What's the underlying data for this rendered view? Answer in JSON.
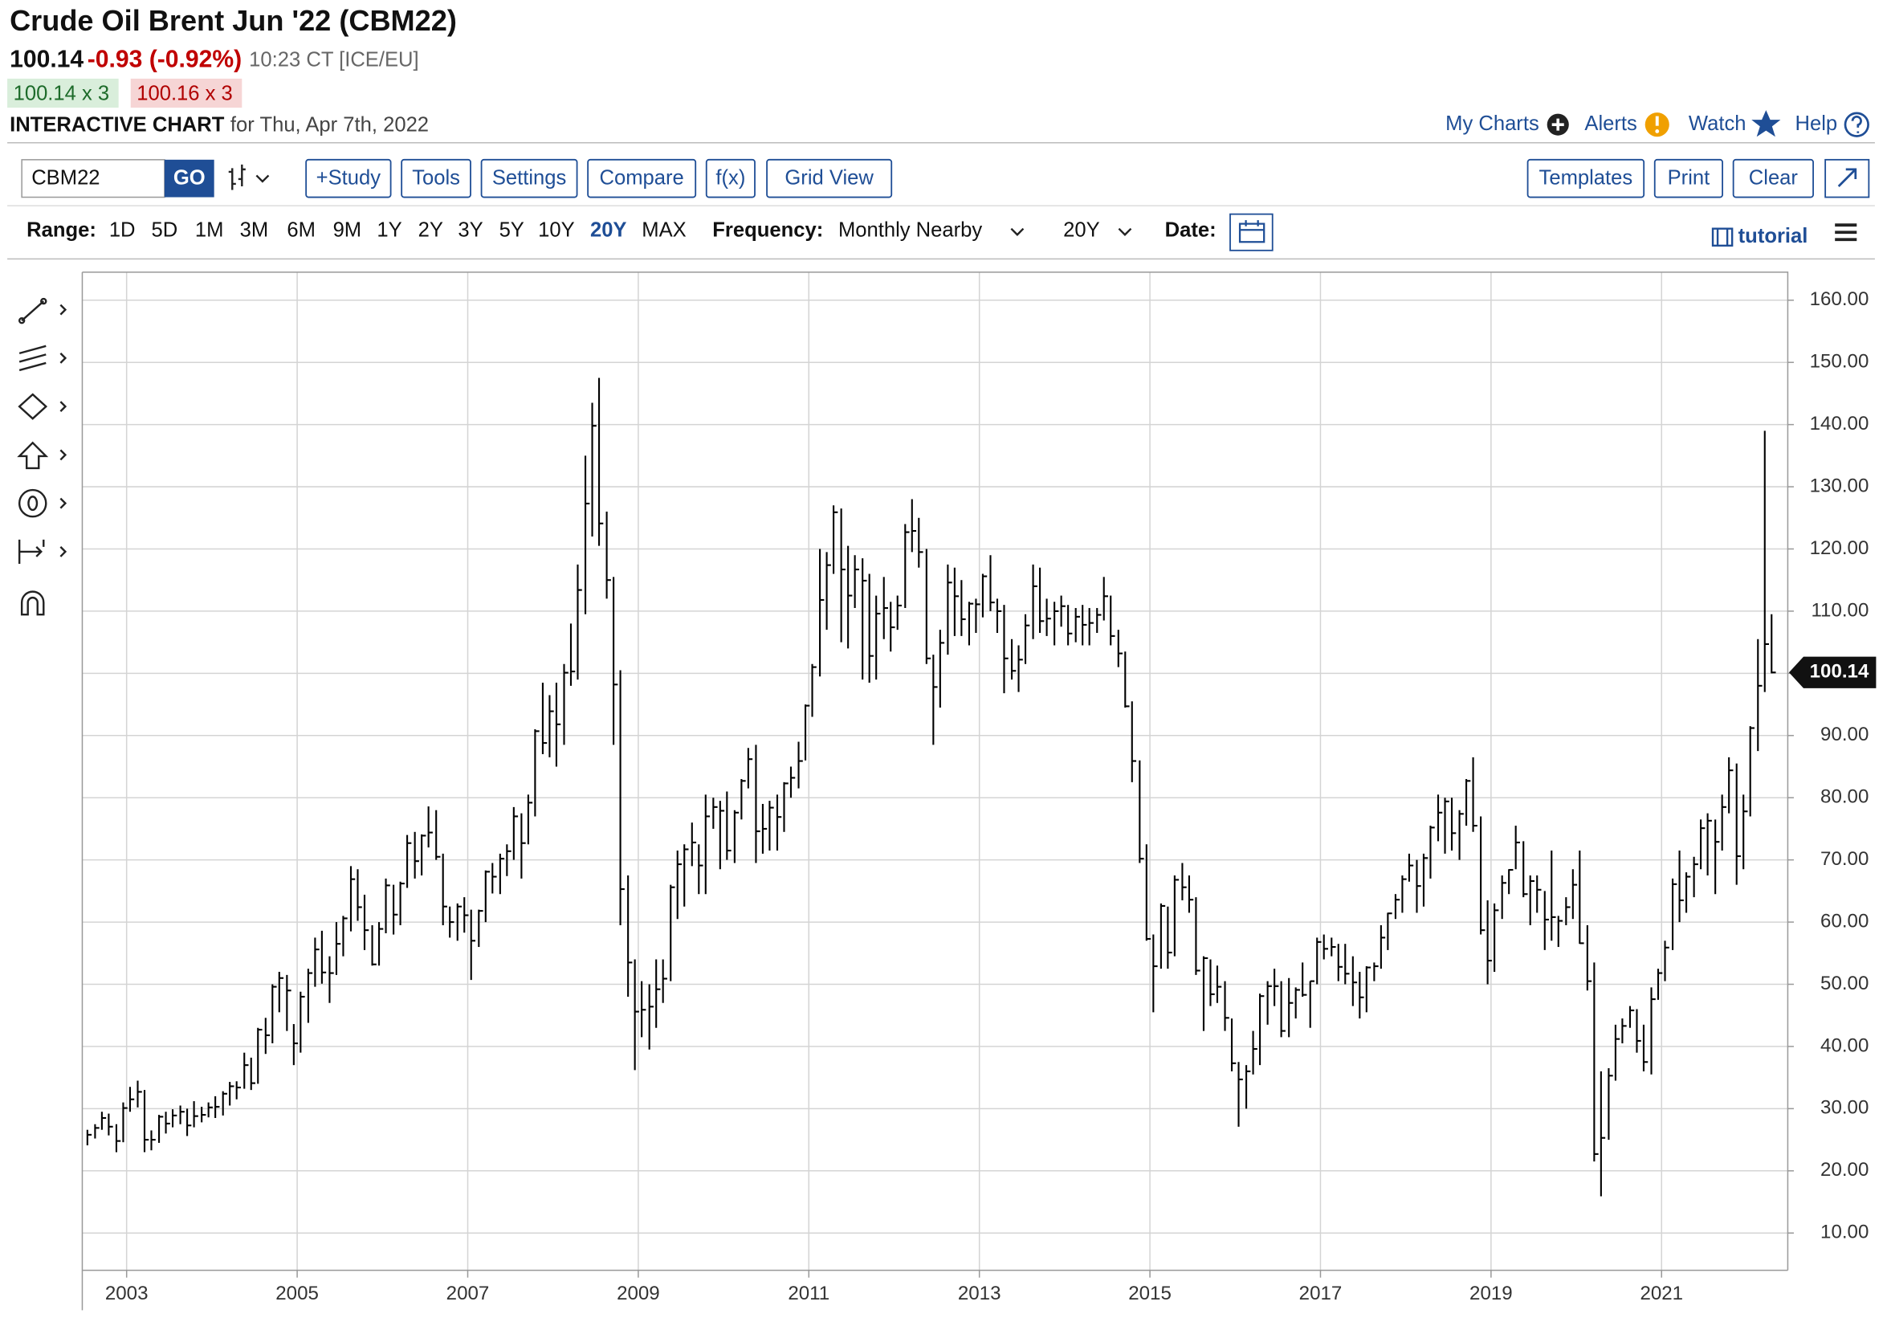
{
  "header": {
    "title": "Crude Oil Brent Jun '22 (CBM22)",
    "last": "100.14",
    "change": "-0.93 (-0.92%)",
    "time": "10:23 CT [ICE/EU]",
    "bid": "100.14 x 3",
    "ask": "100.16 x 3",
    "chart_label": "INTERACTIVE CHART",
    "date_text": "for Thu, Apr 7th, 2022",
    "links": [
      "My Charts",
      "Alerts",
      "Watch",
      "Help"
    ]
  },
  "toolbar": {
    "symbol": "CBM22",
    "go": "GO",
    "buttons": [
      "+Study",
      "Tools",
      "Settings",
      "Compare",
      "f(x)",
      "Grid View"
    ],
    "right_buttons": [
      "Templates",
      "Print",
      "Clear"
    ],
    "range_label": "Range:",
    "ranges": [
      "1D",
      "5D",
      "1M",
      "3M",
      "6M",
      "9M",
      "1Y",
      "2Y",
      "3Y",
      "5Y",
      "10Y",
      "20Y",
      "MAX"
    ],
    "active_range": "20Y",
    "frequency_label": "Frequency:",
    "frequency": "Monthly Nearby",
    "period": "20Y",
    "date_label": "Date:",
    "tutorial": "tutorial"
  },
  "chart_data": {
    "type": "ohlc",
    "color": "#000000",
    "grid": true,
    "x": [
      2002.54,
      2002.63,
      2002.71,
      2002.79,
      2002.88,
      2002.96,
      2003.04,
      2003.13,
      2003.21,
      2003.29,
      2003.38,
      2003.46,
      2003.54,
      2003.63,
      2003.71,
      2003.79,
      2003.88,
      2003.96,
      2004.04,
      2004.13,
      2004.21,
      2004.29,
      2004.38,
      2004.46,
      2004.54,
      2004.63,
      2004.71,
      2004.79,
      2004.88,
      2004.96,
      2005.04,
      2005.13,
      2005.21,
      2005.29,
      2005.38,
      2005.46,
      2005.54,
      2005.63,
      2005.71,
      2005.79,
      2005.88,
      2005.96,
      2006.04,
      2006.13,
      2006.21,
      2006.29,
      2006.38,
      2006.46,
      2006.54,
      2006.63,
      2006.71,
      2006.79,
      2006.88,
      2006.96,
      2007.04,
      2007.13,
      2007.21,
      2007.29,
      2007.38,
      2007.46,
      2007.54,
      2007.63,
      2007.71,
      2007.79,
      2007.88,
      2007.96,
      2008.04,
      2008.13,
      2008.21,
      2008.29,
      2008.38,
      2008.46,
      2008.54,
      2008.63,
      2008.71,
      2008.79,
      2008.88,
      2008.96,
      2009.04,
      2009.13,
      2009.21,
      2009.29,
      2009.38,
      2009.46,
      2009.54,
      2009.63,
      2009.71,
      2009.79,
      2009.88,
      2009.96,
      2010.04,
      2010.13,
      2010.21,
      2010.29,
      2010.38,
      2010.46,
      2010.54,
      2010.63,
      2010.71,
      2010.79,
      2010.88,
      2010.96,
      2011.04,
      2011.13,
      2011.21,
      2011.29,
      2011.38,
      2011.46,
      2011.54,
      2011.63,
      2011.71,
      2011.79,
      2011.88,
      2011.96,
      2012.04,
      2012.13,
      2012.21,
      2012.29,
      2012.38,
      2012.46,
      2012.54,
      2012.63,
      2012.71,
      2012.79,
      2012.88,
      2012.96,
      2013.04,
      2013.13,
      2013.21,
      2013.29,
      2013.38,
      2013.46,
      2013.54,
      2013.63,
      2013.71,
      2013.79,
      2013.88,
      2013.96,
      2014.04,
      2014.13,
      2014.21,
      2014.29,
      2014.38,
      2014.46,
      2014.54,
      2014.63,
      2014.71,
      2014.79,
      2014.88,
      2014.96,
      2015.04,
      2015.13,
      2015.21,
      2015.29,
      2015.38,
      2015.46,
      2015.54,
      2015.63,
      2015.71,
      2015.79,
      2015.88,
      2015.96,
      2016.04,
      2016.13,
      2016.21,
      2016.29,
      2016.38,
      2016.46,
      2016.54,
      2016.63,
      2016.71,
      2016.79,
      2016.88,
      2016.96,
      2017.04,
      2017.13,
      2017.21,
      2017.29,
      2017.38,
      2017.46,
      2017.54,
      2017.63,
      2017.71,
      2017.79,
      2017.88,
      2017.96,
      2018.04,
      2018.13,
      2018.21,
      2018.29,
      2018.38,
      2018.46,
      2018.54,
      2018.63,
      2018.71,
      2018.79,
      2018.88,
      2018.96,
      2019.04,
      2019.13,
      2019.21,
      2019.29,
      2019.38,
      2019.46,
      2019.54,
      2019.63,
      2019.71,
      2019.79,
      2019.88,
      2019.96,
      2020.04,
      2020.13,
      2020.21,
      2020.29,
      2020.38,
      2020.46,
      2020.54,
      2020.63,
      2020.71,
      2020.79,
      2020.88,
      2020.96,
      2021.04,
      2021.13,
      2021.21,
      2021.29,
      2021.38,
      2021.46,
      2021.54,
      2021.63,
      2021.71,
      2021.79,
      2021.88,
      2021.96,
      2022.04,
      2022.13,
      2022.21,
      2022.29
    ],
    "high": [
      26.6,
      27.5,
      29.5,
      29.2,
      27.5,
      31,
      33.5,
      34.5,
      33,
      26.5,
      29,
      29.5,
      29.9,
      30.5,
      30,
      31.2,
      30.3,
      31,
      32,
      32.8,
      34.3,
      34.4,
      39,
      38.2,
      43,
      44.6,
      50,
      52,
      51.5,
      43.6,
      48.8,
      52.5,
      57.5,
      58.6,
      54.5,
      60,
      61,
      69,
      68.5,
      64.4,
      59.5,
      60,
      67,
      66,
      66.5,
      74,
      74.5,
      74.1,
      78.6,
      78,
      71,
      62.5,
      63,
      64,
      62,
      62,
      68.3,
      69.5,
      71,
      72.5,
      78.5,
      77.5,
      80.5,
      91,
      98.5,
      96.5,
      98.5,
      101.5,
      108,
      117.5,
      135,
      143.5,
      147.5,
      126,
      115.5,
      100.5,
      67.5,
      54,
      50.5,
      50,
      54,
      54,
      66,
      71.5,
      72.5,
      76,
      72.5,
      80.5,
      80,
      79.5,
      81,
      78,
      83,
      88,
      88.5,
      79,
      79.5,
      80.5,
      82.5,
      85,
      89,
      95,
      101.5,
      120,
      119.5,
      127,
      126.5,
      120.5,
      119,
      118.5,
      116,
      112.5,
      115.5,
      111.5,
      112.5,
      124,
      128,
      125,
      120,
      103,
      107,
      117.5,
      117,
      115,
      111.5,
      112,
      116,
      119,
      112,
      111,
      105.5,
      104.5,
      109.5,
      117.5,
      117,
      112,
      111.5,
      112.5,
      111,
      110.5,
      111,
      110.5,
      110.5,
      115.5,
      112.5,
      107,
      103.5,
      95.5,
      86,
      72.5,
      58,
      63,
      62.5,
      67.5,
      69.5,
      67.5,
      64,
      54.5,
      54,
      53,
      50.5,
      44.5,
      37.5,
      37,
      42.5,
      48.5,
      50.5,
      52.5,
      50.5,
      51,
      49.5,
      53.5,
      50.5,
      57.5,
      58,
      57.5,
      56.5,
      56.5,
      54.5,
      52,
      52.9,
      53.5,
      59.5,
      61.5,
      64.5,
      67.5,
      71,
      70,
      71,
      75.5,
      80.5,
      80,
      80,
      78,
      83,
      86.5,
      77,
      63.5,
      63,
      67.5,
      68.5,
      75.5,
      73,
      67.5,
      67.5,
      65,
      71.5,
      61,
      64,
      68.5,
      71.5,
      59.5,
      53.5,
      36,
      36.5,
      43.5,
      44.5,
      46.5,
      46,
      43.5,
      49.5,
      52.5,
      57,
      67,
      71.5,
      68,
      70.5,
      76.5,
      77.5,
      76.5,
      80.5,
      86.5,
      85.5,
      80.5,
      91.5,
      105.5,
      139,
      109.5
    ],
    "low": [
      24.1,
      25.2,
      26.6,
      25.7,
      23,
      24.6,
      29.5,
      30.2,
      23,
      23.3,
      24.5,
      26,
      27,
      27.5,
      25.6,
      27,
      27.8,
      28.6,
      28.5,
      28.9,
      30.5,
      31.5,
      33.2,
      33,
      34,
      38.8,
      40.5,
      45.5,
      42.5,
      37,
      39,
      43.8,
      49.6,
      50.1,
      47,
      51.5,
      54.5,
      58.5,
      60.2,
      55.5,
      53,
      53,
      58.2,
      58,
      59.5,
      65.5,
      67,
      67.5,
      72,
      70,
      59.5,
      57.5,
      57,
      58.3,
      50.7,
      56,
      60,
      64.6,
      64.5,
      67.4,
      70,
      67,
      72.5,
      77,
      87,
      86.5,
      85,
      88.5,
      98,
      99,
      109.5,
      122,
      120.5,
      112,
      88.5,
      59.5,
      48,
      36.2,
      41.5,
      39.5,
      43,
      47,
      50.5,
      60.5,
      62.5,
      69,
      64.5,
      64.5,
      75,
      68.5,
      70,
      69.5,
      76.5,
      81.5,
      69.5,
      71,
      71.5,
      71.5,
      74.5,
      80,
      81.5,
      86,
      93,
      99.5,
      107,
      116,
      105,
      104,
      110.5,
      99,
      98.5,
      99,
      105.5,
      103.5,
      107,
      110.5,
      119.5,
      117,
      101.5,
      88.5,
      94.5,
      103,
      106,
      106,
      104.5,
      106.5,
      109,
      110,
      106.5,
      96.8,
      99,
      97,
      101.5,
      105.5,
      106.5,
      106,
      104.5,
      107.5,
      104.5,
      105,
      104.5,
      104.5,
      106.5,
      108.5,
      104.5,
      101,
      94.5,
      82.5,
      69.5,
      57,
      45.5,
      52.5,
      52.5,
      54.5,
      63.5,
      61.5,
      51.5,
      42.5,
      46.5,
      47,
      42.5,
      36,
      27.1,
      30,
      35.5,
      37,
      43.5,
      46.5,
      41.5,
      41.5,
      44.5,
      48,
      43,
      50,
      54,
      54.5,
      50.5,
      50,
      46.5,
      44.5,
      45.5,
      50.5,
      52.5,
      55.5,
      60.5,
      61.5,
      66.5,
      61.5,
      62.5,
      67,
      73,
      71,
      71.5,
      70,
      75.5,
      74.5,
      58,
      50,
      52,
      60.5,
      64.5,
      68.5,
      64,
      59.5,
      61.5,
      55.5,
      57,
      56,
      59.5,
      60.5,
      56.5,
      49,
      21.5,
      15.9,
      25,
      34.5,
      40.5,
      43,
      39,
      36,
      35.5,
      47.5,
      50.5,
      55.5,
      60,
      61.5,
      64,
      68.5,
      67.5,
      64.5,
      71.5,
      77.5,
      66,
      68.5,
      77,
      87.5,
      97,
      100
    ],
    "close": [
      25.8,
      26.9,
      28.5,
      27.1,
      24.8,
      30.1,
      31.5,
      32.7,
      25,
      25,
      28.7,
      27.6,
      28.9,
      29.5,
      27.3,
      28.8,
      29,
      30.2,
      30.3,
      32.4,
      33.6,
      33.4,
      37,
      34.1,
      42.7,
      41.8,
      49.6,
      51,
      49,
      40.5,
      48,
      51.8,
      55.6,
      51.9,
      51.8,
      56.5,
      60.6,
      66.9,
      62.4,
      58.7,
      53.2,
      58.9,
      65.9,
      61.2,
      66.2,
      72.7,
      69.8,
      73.9,
      74.4,
      70.5,
      62.5,
      60,
      62.5,
      61.1,
      57,
      61.8,
      68.1,
      67.3,
      70.2,
      71.4,
      77,
      72.7,
      79.2,
      90.7,
      88.8,
      93.9,
      91.8,
      100.1,
      100.3,
      113.4,
      127.3,
      139.8,
      124.1,
      115,
      98.2,
      65.3,
      53.5,
      45.6,
      45.9,
      46.4,
      49.2,
      50.9,
      65.6,
      69.3,
      71.7,
      72.8,
      69.1,
      77,
      78.5,
      77.9,
      71.5,
      77.6,
      82.7,
      86.2,
      74.6,
      75,
      78.4,
      76.9,
      82.3,
      83.2,
      85.9,
      94.8,
      101,
      111.8,
      117.4,
      125.9,
      116.7,
      112.5,
      116.7,
      114.9,
      102.8,
      109.6,
      110.5,
      107.4,
      110.9,
      122.7,
      122.9,
      119.5,
      102.4,
      97.8,
      104.9,
      114.6,
      112.4,
      108.7,
      111.2,
      111.1,
      115.6,
      111.4,
      110,
      102.4,
      100.4,
      102.2,
      107.7,
      114,
      108.4,
      108.8,
      110,
      110.8,
      106.4,
      109.1,
      107.8,
      108.1,
      109.4,
      112.4,
      106,
      103.2,
      94.7,
      85.9,
      70.2,
      57.3,
      52.9,
      62.6,
      55.1,
      66.8,
      65.6,
      63.6,
      52.2,
      54.2,
      48.4,
      49.6,
      44.6,
      37.3,
      34.7,
      36,
      39.6,
      48.1,
      49.7,
      49.7,
      42.5,
      47,
      49.1,
      48.3,
      50.5,
      56.8,
      55.7,
      56,
      52.8,
      51.7,
      50.3,
      47.9,
      52.7,
      52.9,
      57.5,
      61.4,
      63.6,
      66.9,
      69.1,
      65.8,
      70.3,
      75.2,
      77.6,
      79.4,
      74.3,
      77.4,
      82.7,
      75.5,
      58.7,
      53.8,
      61.9,
      66.3,
      68.4,
      72.8,
      64.5,
      66.6,
      65.2,
      60.4,
      60.8,
      60.2,
      62.4,
      66,
      56.6,
      50.5,
      22.7,
      25.3,
      35.3,
      41.2,
      43.3,
      45.8,
      40.9,
      37.5,
      47.6,
      51.8,
      55.9,
      66.1,
      63.5,
      67.3,
      69.3,
      75.1,
      76.3,
      72.9,
      78.5,
      84.4,
      70.6,
      77.8,
      91.2,
      98,
      104.7,
      100.14
    ],
    "xlim": [
      2002.48,
      2022.48
    ],
    "xticks": [
      2003,
      2005,
      2007,
      2009,
      2011,
      2013,
      2015,
      2017,
      2019,
      2021
    ],
    "ylim": [
      4,
      164.5
    ],
    "yticks": [
      {
        "value": 10,
        "label": "10.00"
      },
      {
        "value": 20,
        "label": "20.00"
      },
      {
        "value": 30,
        "label": "30.00"
      },
      {
        "value": 40,
        "label": "40.00"
      },
      {
        "value": 50,
        "label": "50.00"
      },
      {
        "value": 60,
        "label": "60.00"
      },
      {
        "value": 70,
        "label": "70.00"
      },
      {
        "value": 80,
        "label": "80.00"
      },
      {
        "value": 90,
        "label": "90.00"
      },
      {
        "value": 100,
        "label": "100.00"
      },
      {
        "value": 110,
        "label": "110.00"
      },
      {
        "value": 120,
        "label": "120.00"
      },
      {
        "value": 130,
        "label": "130.00"
      },
      {
        "value": 140,
        "label": "140.00"
      },
      {
        "value": 150,
        "label": "150.00"
      },
      {
        "value": 160,
        "label": "160.00"
      }
    ]
  }
}
